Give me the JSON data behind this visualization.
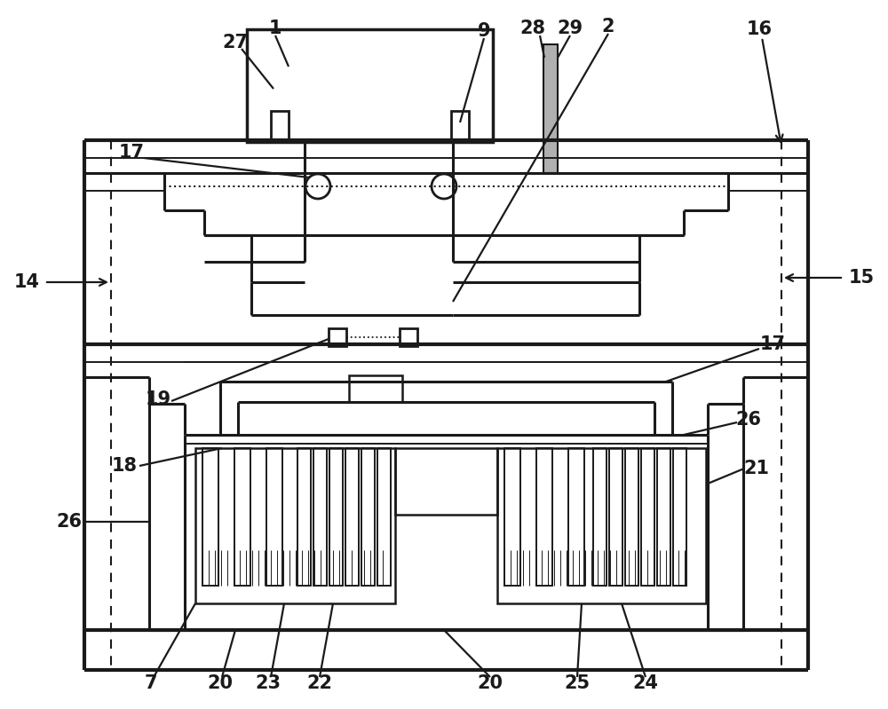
{
  "bg_color": "#ffffff",
  "lc": "#1a1a1a",
  "lw": 2.2,
  "tlw": 1.4
}
